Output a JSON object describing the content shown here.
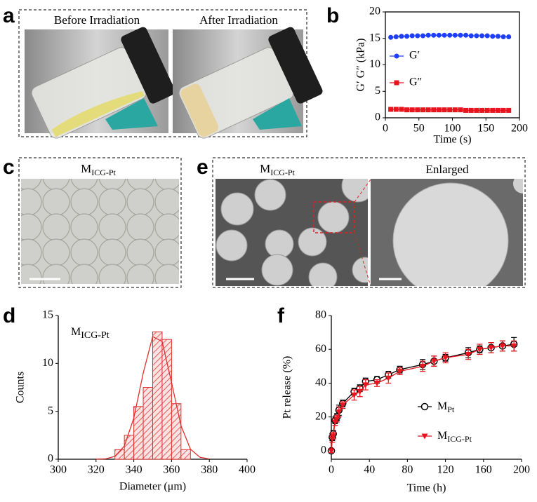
{
  "panels": {
    "a": {
      "label": "a",
      "captions": [
        "Before Irradiation",
        "After Irradiation"
      ]
    },
    "c": {
      "label": "c",
      "caption": {
        "base": "M",
        "sub": "ICG-Pt"
      }
    },
    "e": {
      "label": "e",
      "caption_left": {
        "base": "M",
        "sub": "ICG-Pt"
      },
      "caption_right": "Enlarged"
    }
  },
  "chart_data": [
    {
      "label": "b",
      "type": "line",
      "x_label": "Time (s)",
      "y_label": "G′ G″ (kPa)",
      "x": [
        8,
        16,
        24,
        32,
        40,
        48,
        56,
        64,
        72,
        80,
        88,
        96,
        104,
        112,
        120,
        128,
        136,
        144,
        152,
        160,
        168,
        176,
        184
      ],
      "series": [
        {
          "name": "G′",
          "color": "#1f3fff",
          "marker": "circle",
          "values": [
            15.2,
            15.3,
            15.4,
            15.4,
            15.5,
            15.5,
            15.5,
            15.6,
            15.6,
            15.6,
            15.6,
            15.6,
            15.6,
            15.6,
            15.6,
            15.5,
            15.5,
            15.5,
            15.5,
            15.4,
            15.4,
            15.3,
            15.3
          ]
        },
        {
          "name": "G″",
          "color": "#e8141e",
          "marker": "square",
          "values": [
            1.6,
            1.6,
            1.6,
            1.5,
            1.5,
            1.5,
            1.5,
            1.5,
            1.5,
            1.5,
            1.5,
            1.5,
            1.5,
            1.5,
            1.4,
            1.4,
            1.4,
            1.4,
            1.4,
            1.4,
            1.4,
            1.4,
            1.4
          ]
        }
      ],
      "xlim": [
        0,
        200
      ],
      "xticks": [
        0,
        50,
        100,
        150,
        200
      ],
      "ylim": [
        0,
        20
      ],
      "yticks": [
        0,
        5,
        10,
        15,
        20
      ]
    },
    {
      "label": "d",
      "type": "histogram",
      "annotation": {
        "base": "M",
        "sub": "ICG-Pt"
      },
      "x_label": "Diameter (μm)",
      "y_label": "Counts",
      "bins": [
        330,
        335,
        340,
        345,
        350,
        355,
        360,
        365,
        370
      ],
      "counts": [
        1,
        2.5,
        5.5,
        7.5,
        13.3,
        12.5,
        5.8,
        1
      ],
      "color": "#e03030",
      "fit": {
        "x": [
          320,
          325,
          330,
          335,
          340,
          345,
          350,
          355,
          360,
          365,
          370,
          375,
          380
        ],
        "values": [
          0.004,
          0.04,
          0.3,
          1.38,
          4.29,
          9.0,
          12.8,
          12.3,
          8.0,
          3.5,
          1.05,
          0.21,
          0.03
        ]
      },
      "xlim": [
        300,
        400
      ],
      "xticks": [
        300,
        320,
        340,
        360,
        380,
        400
      ],
      "ylim": [
        0,
        15
      ],
      "yticks": [
        0,
        5,
        10,
        15
      ]
    },
    {
      "label": "f",
      "type": "line",
      "x_label": "Time (h)",
      "y_label": "Pt release (%)",
      "x": [
        0,
        1,
        2,
        4,
        6,
        8,
        12,
        24,
        30,
        36,
        48,
        60,
        72,
        96,
        108,
        120,
        144,
        156,
        168,
        180,
        192
      ],
      "series": [
        {
          "name": {
            "base": "M",
            "sub": "Pt"
          },
          "color": "#000000",
          "marker": "open-circle",
          "values": [
            0,
            8,
            10,
            18,
            20,
            24,
            28,
            35,
            37,
            41,
            42,
            45,
            48,
            51,
            53,
            55,
            58,
            60,
            61,
            62,
            63
          ],
          "errors": [
            1,
            2,
            2,
            2,
            2,
            3,
            2,
            2,
            2,
            2,
            2,
            2,
            2,
            3,
            3,
            2,
            3,
            2,
            3,
            3,
            4
          ]
        },
        {
          "name": {
            "base": "M",
            "sub": "ICG-Pt"
          },
          "color": "#e8141e",
          "marker": "triangle-down",
          "values": [
            0,
            7,
            9,
            17,
            19,
            23,
            27,
            33,
            35,
            39,
            40,
            43,
            47,
            50,
            53,
            55,
            57,
            60,
            61,
            62,
            62
          ],
          "errors": [
            1,
            2,
            2,
            2,
            2,
            3,
            2,
            3,
            3,
            3,
            2,
            3,
            2,
            3,
            3,
            3,
            3,
            3,
            3,
            3,
            3
          ]
        }
      ],
      "xlim": [
        0,
        200
      ],
      "xticks": [
        0,
        40,
        80,
        120,
        160,
        200
      ],
      "ylim": [
        -5,
        80
      ],
      "yticks": [
        0,
        20,
        40,
        60,
        80
      ]
    }
  ]
}
